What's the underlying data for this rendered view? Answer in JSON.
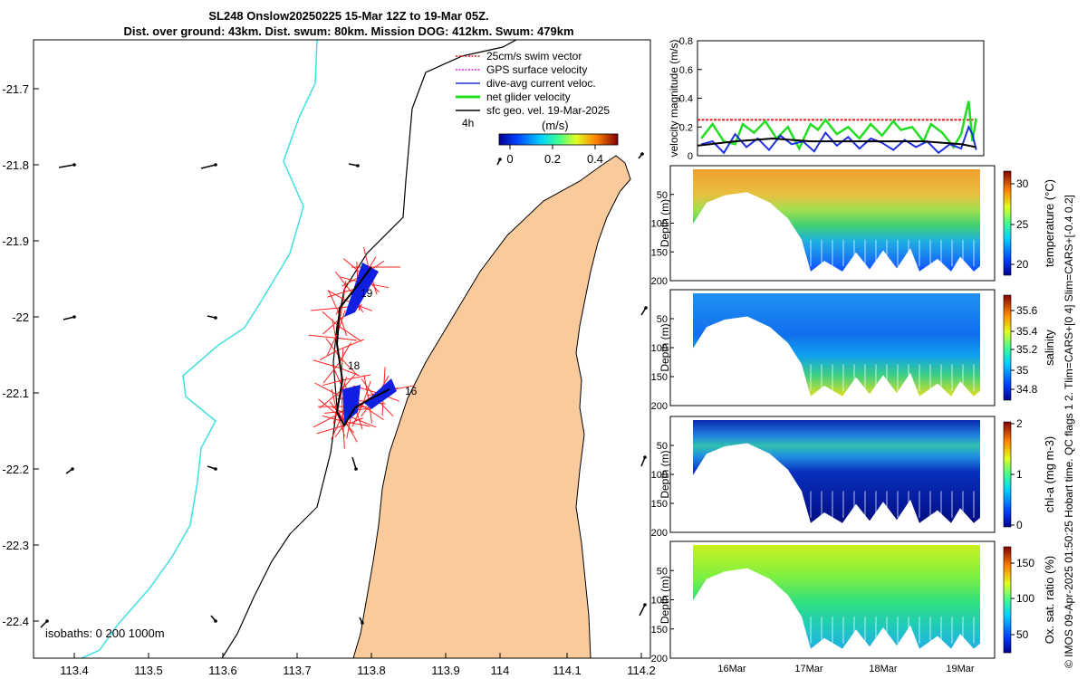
{
  "title_line1": "SL248 Onslow20250225 15-Mar 12Z to 19-Mar 05Z.",
  "title_line2": "Dist. over ground: 43km. Dist. swum: 80km. Mission DOG: 412km. Swum: 479km",
  "map": {
    "lon_ticks": [
      "113.4",
      "113.5",
      "113.6",
      "113.7",
      "113.8",
      "113.9",
      "114",
      "114.1",
      "114.2"
    ],
    "lat_ticks": [
      "-21.7",
      "-21.8",
      "-21.9",
      "-22",
      "-22.1",
      "-22.2",
      "-22.3",
      "-22.4"
    ],
    "legend": [
      "25cm/s swim vector",
      "GPS surface velocity",
      "dive-avg current veloc.",
      "net glider velocity",
      "sfc geo. vel. 19-Mar-2025"
    ],
    "legend_colors": [
      "#e02020",
      "#e020e0",
      "#2030e0",
      "#22dd22",
      "#000000"
    ],
    "time_step_label": "4h",
    "colorbar_label": "(m/s)",
    "colorbar_ticks": [
      "0",
      "0.2",
      "0.4"
    ],
    "isobaths_label": "isobaths: 0   200  1000m",
    "day_labels": [
      "19",
      "18",
      "16"
    ],
    "land_color": "#f9cb9c",
    "isobath_200_color": "#40e0e0"
  },
  "chart_data": [
    {
      "type": "line",
      "ylabel": "velocity magnitude (m/s)",
      "ylim": [
        0,
        0.8
      ],
      "yticks": [
        "0",
        "0.2",
        "0.4",
        "0.6",
        "0.8"
      ],
      "xlim_days": [
        15.5,
        19.3
      ],
      "series": [
        {
          "name": "25cm/s swim vector",
          "color": "#e02020",
          "x": [
            15.5,
            19.2
          ],
          "values": [
            0.25,
            0.25
          ]
        },
        {
          "name": "net glider velocity",
          "color": "#22dd22",
          "x": [
            15.55,
            15.7,
            15.85,
            16.0,
            16.1,
            16.25,
            16.4,
            16.55,
            16.7,
            16.85,
            17.0,
            17.1,
            17.2,
            17.35,
            17.5,
            17.65,
            17.8,
            17.95,
            18.1,
            18.2,
            18.35,
            18.5,
            18.6,
            18.75,
            18.9,
            19.0,
            19.1,
            19.15,
            19.2
          ],
          "values": [
            0.12,
            0.22,
            0.1,
            0.08,
            0.22,
            0.16,
            0.24,
            0.12,
            0.2,
            0.05,
            0.22,
            0.18,
            0.25,
            0.15,
            0.2,
            0.12,
            0.22,
            0.14,
            0.24,
            0.18,
            0.2,
            0.1,
            0.22,
            0.16,
            0.06,
            0.15,
            0.38,
            0.1,
            0.26
          ]
        },
        {
          "name": "dive-avg current veloc.",
          "color": "#2030e0",
          "x": [
            15.55,
            15.7,
            15.85,
            16.0,
            16.15,
            16.3,
            16.45,
            16.6,
            16.75,
            16.9,
            17.05,
            17.2,
            17.35,
            17.5,
            17.65,
            17.8,
            17.95,
            18.1,
            18.25,
            18.4,
            18.55,
            18.7,
            18.85,
            19.0,
            19.1,
            19.15,
            19.2
          ],
          "values": [
            0.08,
            0.1,
            0.02,
            0.15,
            0.06,
            0.12,
            0.04,
            0.14,
            0.08,
            0.1,
            0.03,
            0.16,
            0.07,
            0.13,
            0.05,
            0.12,
            0.09,
            0.04,
            0.11,
            0.06,
            0.1,
            0.02,
            0.08,
            0.05,
            0.2,
            0.15,
            0.04
          ]
        },
        {
          "name": "sfc geo. vel.",
          "color": "#000000",
          "x": [
            15.5,
            16.0,
            16.5,
            17.0,
            17.5,
            18.0,
            18.5,
            19.0,
            19.2
          ],
          "values": [
            0.07,
            0.1,
            0.12,
            0.1,
            0.1,
            0.1,
            0.1,
            0.08,
            0.06
          ]
        }
      ]
    },
    {
      "type": "heatmap",
      "ylabel": "Depth (m)",
      "yticks": [
        "50",
        "100",
        "150",
        "200"
      ],
      "colorbar_label": "temperature (°C)",
      "colorbar_ticks": [
        "20",
        "25",
        "30"
      ],
      "clim": [
        18.5,
        32
      ]
    },
    {
      "type": "heatmap",
      "ylabel": "Depth (m)",
      "yticks": [
        "50",
        "100",
        "150",
        "200"
      ],
      "colorbar_label": "salinity",
      "colorbar_ticks": [
        "34.8",
        "35",
        "35.2",
        "35.4",
        "35.6"
      ],
      "clim": [
        34.7,
        35.7
      ]
    },
    {
      "type": "heatmap",
      "ylabel": "Depth (m)",
      "yticks": [
        "50",
        "100",
        "150",
        "200"
      ],
      "colorbar_label": "chl-a (mg m-3)",
      "colorbar_ticks": [
        "0",
        "1",
        "2"
      ],
      "clim": [
        0,
        2
      ]
    },
    {
      "type": "heatmap",
      "ylabel": "Depth (m)",
      "yticks": [
        "50",
        "100",
        "150",
        "200"
      ],
      "colorbar_label": "Ox. sat. ratio (%)",
      "colorbar_ticks": [
        "50",
        "100",
        "150"
      ],
      "clim": [
        25,
        175
      ]
    }
  ],
  "profiles_xticks": [
    "16Mar",
    "17Mar",
    "18Mar",
    "19Mar"
  ],
  "footer_note": "© IMOS 09-Apr-2025 01:50:25 Hobart time. QC flags 1  2. Tlim=CARS+[0 4] Slim=CARS+[-0.4 0.2]"
}
